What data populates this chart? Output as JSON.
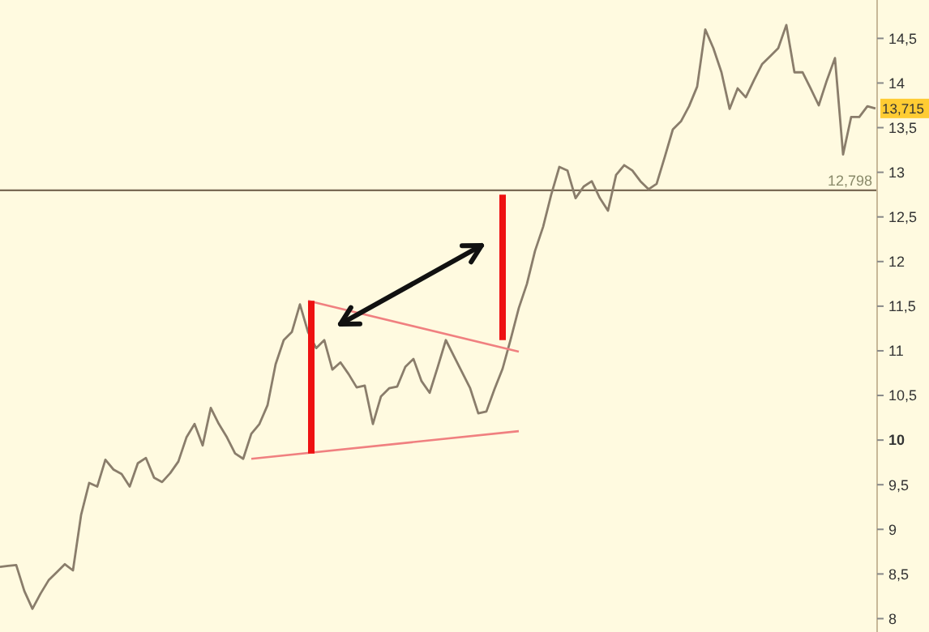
{
  "chart_data": {
    "type": "line",
    "ylim": [
      7.85,
      14.93
    ],
    "categories": [
      null,
      null,
      null,
      null,
      null,
      null,
      null,
      null,
      null,
      null,
      null,
      null,
      null,
      null,
      null,
      null,
      null,
      null,
      null,
      null,
      null,
      null,
      null,
      null,
      null,
      null,
      null,
      null,
      null,
      null,
      null,
      null,
      null,
      null,
      null,
      null,
      null,
      null,
      null,
      null,
      null,
      null,
      null,
      null,
      null,
      null,
      null,
      null,
      null,
      null,
      null,
      null,
      null,
      null,
      null,
      null,
      null,
      null,
      null,
      null,
      null,
      null,
      null,
      null,
      null,
      null,
      null,
      null,
      null,
      null,
      null,
      null,
      null,
      null,
      null,
      null,
      null,
      null,
      null,
      null,
      null,
      null,
      null,
      null,
      null,
      null,
      null,
      null,
      null,
      null,
      null,
      null,
      null,
      null,
      null,
      null,
      null,
      null,
      null,
      null,
      null,
      null,
      null,
      null,
      null,
      null,
      null,
      null,
      null
    ],
    "yticks": [
      8,
      {
        "value": 8.5,
        "label": "8,5"
      },
      9,
      {
        "value": 9.5,
        "label": "9,5"
      },
      10,
      {
        "value": 10.5,
        "label": "10,5"
      },
      11,
      {
        "value": 11.5,
        "label": "11,5"
      },
      12,
      {
        "value": 12.5,
        "label": "12,5"
      },
      13,
      {
        "value": 13.5,
        "label": "13,5"
      },
      14,
      {
        "value": 14.5,
        "label": "14,5"
      }
    ],
    "tick_labels": "y",
    "ref_lines": [
      {
        "axis": "y",
        "value": 12.798,
        "label": "12,798",
        "color": "#7a6a55"
      }
    ],
    "annotations": [
      {
        "text": "13,715",
        "y": 13.715
      }
    ],
    "series": [
      {
        "color": "#8a7d6b",
        "values": [
          8.58,
          8.59,
          8.6,
          8.31,
          8.11,
          8.28,
          8.43,
          8.52,
          8.61,
          8.54,
          9.16,
          9.52,
          9.48,
          9.78,
          9.67,
          9.62,
          9.48,
          9.74,
          9.8,
          9.58,
          9.53,
          9.63,
          9.76,
          10.03,
          10.18,
          9.94,
          10.36,
          10.18,
          10.03,
          9.85,
          9.79,
          10.07,
          10.18,
          10.39,
          10.85,
          11.12,
          11.21,
          11.52,
          11.21,
          11.03,
          11.12,
          10.79,
          10.87,
          10.74,
          10.59,
          10.61,
          10.18,
          10.49,
          10.58,
          10.6,
          10.82,
          10.91,
          10.66,
          10.53,
          10.82,
          11.12,
          10.94,
          10.76,
          10.58,
          10.3,
          10.32,
          10.57,
          10.8,
          11.13,
          11.48,
          11.75,
          12.12,
          12.39,
          12.75,
          13.06,
          13.02,
          12.71,
          12.84,
          12.9,
          12.71,
          12.57,
          12.97,
          13.08,
          13.02,
          12.9,
          12.81,
          12.87,
          13.17,
          13.48,
          13.57,
          13.74,
          13.96,
          14.6,
          14.39,
          14.12,
          13.71,
          13.94,
          13.84,
          14.03,
          14.21,
          14.3,
          14.39,
          14.65,
          14.12,
          14.12,
          13.94,
          13.75,
          14.03,
          14.28,
          13.2,
          13.62,
          13.62,
          13.74,
          13.715
        ]
      },
      {
        "color": "#f08080",
        "values": [
          null,
          null,
          null,
          null,
          null,
          null,
          null,
          null,
          null,
          null,
          null,
          null,
          null,
          null,
          null,
          null,
          null,
          null,
          null,
          null,
          null,
          null,
          null,
          null,
          null,
          null,
          null,
          null,
          null,
          null,
          null,
          null,
          null,
          null,
          null,
          null,
          null,
          null,
          11.56,
          null,
          null,
          null,
          null,
          null,
          null,
          null,
          null,
          null,
          null,
          null,
          null,
          null,
          null,
          null,
          null,
          null,
          null,
          null,
          null,
          null,
          null,
          null,
          null,
          null,
          10.99,
          null,
          null,
          null,
          null,
          null,
          null,
          null,
          null,
          null,
          null,
          null,
          null,
          null,
          null,
          null,
          null,
          null,
          null,
          null,
          null,
          null,
          null,
          null,
          null,
          null,
          null,
          null,
          null,
          null,
          null,
          null,
          null,
          null,
          null,
          null,
          null,
          null,
          null,
          null,
          null,
          null,
          null,
          null,
          null
        ]
      },
      {
        "color": "#f08080",
        "values": [
          null,
          null,
          null,
          null,
          null,
          null,
          null,
          null,
          null,
          null,
          null,
          null,
          null,
          null,
          null,
          null,
          null,
          null,
          null,
          null,
          null,
          null,
          null,
          null,
          null,
          null,
          null,
          null,
          null,
          null,
          null,
          9.79,
          null,
          null,
          null,
          null,
          null,
          null,
          null,
          null,
          null,
          null,
          null,
          null,
          null,
          null,
          null,
          null,
          null,
          null,
          null,
          null,
          null,
          null,
          null,
          null,
          null,
          null,
          null,
          null,
          null,
          null,
          null,
          null,
          10.1,
          null,
          null,
          null,
          null,
          null,
          null,
          null,
          null,
          null,
          null,
          null,
          null,
          null,
          null,
          null,
          null,
          null,
          null,
          null,
          null,
          null,
          null,
          null,
          null,
          null,
          null,
          null,
          null,
          null,
          null,
          null,
          null,
          null,
          null,
          null,
          null,
          null,
          null,
          null,
          null,
          null,
          null,
          null,
          null
        ]
      }
    ]
  }
}
